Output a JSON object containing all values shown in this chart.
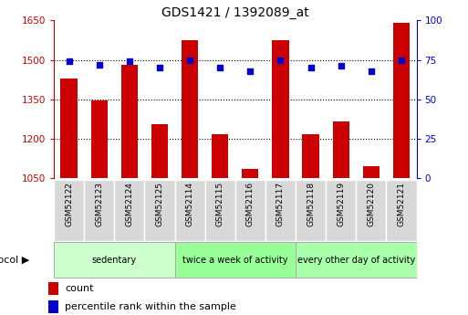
{
  "title": "GDS1421 / 1392089_at",
  "samples": [
    "GSM52122",
    "GSM52123",
    "GSM52124",
    "GSM52125",
    "GSM52114",
    "GSM52115",
    "GSM52116",
    "GSM52117",
    "GSM52118",
    "GSM52119",
    "GSM52120",
    "GSM52121"
  ],
  "counts": [
    1430,
    1345,
    1480,
    1255,
    1575,
    1215,
    1085,
    1575,
    1215,
    1265,
    1095,
    1640
  ],
  "percentiles": [
    74,
    72,
    74,
    70,
    75,
    70,
    68,
    75,
    70,
    71,
    68,
    75
  ],
  "ylim_left": [
    1050,
    1650
  ],
  "ylim_right": [
    0,
    100
  ],
  "yticks_left": [
    1050,
    1200,
    1350,
    1500,
    1650
  ],
  "yticks_right": [
    0,
    25,
    50,
    75,
    100
  ],
  "bar_color": "#cc0000",
  "dot_color": "#0000cc",
  "bar_width": 0.55,
  "groups": [
    {
      "label": "sedentary",
      "indices": [
        0,
        1,
        2,
        3
      ],
      "color": "#ccffcc"
    },
    {
      "label": "twice a week of activity",
      "indices": [
        4,
        5,
        6,
        7
      ],
      "color": "#99ff99"
    },
    {
      "label": "every other day of activity",
      "indices": [
        8,
        9,
        10,
        11
      ],
      "color": "#aaffaa"
    }
  ],
  "xlabel_protocol": "protocol",
  "legend_count": "count",
  "legend_percentile": "percentile rank within the sample",
  "tick_label_color_left": "#cc0000",
  "tick_label_color_right": "#0000cc",
  "xtick_bg": "#d8d8d8",
  "hgrid_levels": [
    1200,
    1350,
    1500
  ]
}
